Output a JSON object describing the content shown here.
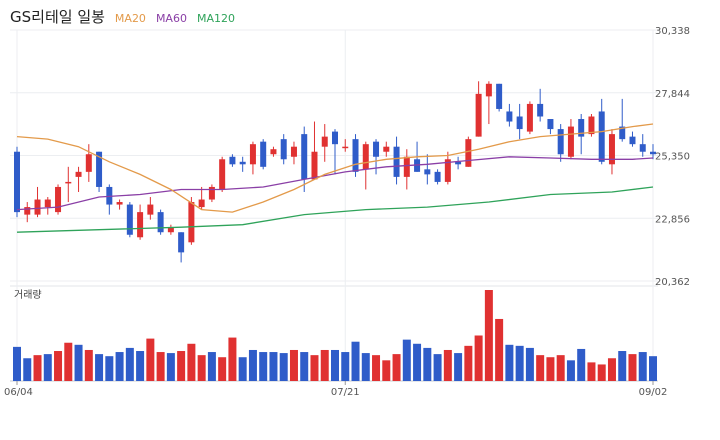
{
  "header": {
    "title": "GS리테일 일봉",
    "legend": [
      {
        "name": "MA20",
        "color": "#e39a4a"
      },
      {
        "name": "MA60",
        "color": "#8a3fa6"
      },
      {
        "name": "MA120",
        "color": "#2fa35a"
      }
    ]
  },
  "colors": {
    "up": "#e03131",
    "down": "#2f5cc9"
  },
  "chart_data": {
    "type": "candlestick",
    "title": "GS리테일 일봉",
    "y_ticks": [
      "30,338",
      "27,844",
      "25,350",
      "22,856",
      "20,362"
    ],
    "ylim": [
      20362,
      30338
    ],
    "x_tick_labels": [
      {
        "label": "06/04",
        "index": 0
      },
      {
        "label": "07/21",
        "index": 32
      },
      {
        "label": "09/02",
        "index": 62
      }
    ],
    "volume_label": "거래량",
    "candles": [
      [
        25500,
        23100,
        25700,
        22900
      ],
      [
        23000,
        23300,
        23500,
        22700
      ],
      [
        23000,
        23600,
        24100,
        22900
      ],
      [
        23300,
        23600,
        23700,
        23000
      ],
      [
        23100,
        24100,
        24200,
        23000
      ],
      [
        24300,
        24300,
        24900,
        23500
      ],
      [
        24500,
        24700,
        24900,
        23900
      ],
      [
        24700,
        25400,
        25800,
        24300
      ],
      [
        25500,
        24100,
        25500,
        23900
      ],
      [
        24100,
        23400,
        24200,
        23000
      ],
      [
        23400,
        23500,
        23600,
        23200
      ],
      [
        23400,
        22200,
        23500,
        22100
      ],
      [
        22100,
        23100,
        23400,
        22000
      ],
      [
        23000,
        23400,
        23700,
        22800
      ],
      [
        23100,
        22300,
        23200,
        22200
      ],
      [
        22300,
        22500,
        22600,
        22200
      ],
      [
        22300,
        21500,
        22300,
        21100
      ],
      [
        21900,
        23500,
        23700,
        21800
      ],
      [
        23300,
        23600,
        24100,
        23200
      ],
      [
        23600,
        24100,
        24200,
        23500
      ],
      [
        24000,
        25200,
        25300,
        23900
      ],
      [
        25300,
        25000,
        25400,
        24900
      ],
      [
        25100,
        25000,
        25300,
        24700
      ],
      [
        25000,
        25800,
        25900,
        24600
      ],
      [
        25900,
        24900,
        26000,
        24800
      ],
      [
        25400,
        25600,
        25700,
        25300
      ],
      [
        26000,
        25200,
        26200,
        25000
      ],
      [
        25300,
        25700,
        25900,
        25000
      ],
      [
        26200,
        24400,
        26500,
        23900
      ],
      [
        24400,
        25500,
        26700,
        24400
      ],
      [
        25700,
        26100,
        26600,
        25100
      ],
      [
        26300,
        25800,
        26400,
        24600
      ],
      [
        25700,
        25700,
        26000,
        25500
      ],
      [
        26000,
        24700,
        26200,
        24500
      ],
      [
        24800,
        25800,
        25900,
        24000
      ],
      [
        25900,
        25300,
        26000,
        24600
      ],
      [
        25500,
        25700,
        25900,
        25300
      ],
      [
        25700,
        24500,
        26100,
        24200
      ],
      [
        24500,
        25300,
        25600,
        24000
      ],
      [
        25200,
        24700,
        25900,
        24700
      ],
      [
        24800,
        24600,
        25400,
        24200
      ],
      [
        24700,
        24300,
        24800,
        24200
      ],
      [
        24300,
        25200,
        25500,
        24200
      ],
      [
        25100,
        25000,
        25300,
        24800
      ],
      [
        24900,
        26000,
        26100,
        24900
      ],
      [
        26100,
        27800,
        28300,
        26100
      ],
      [
        27700,
        28200,
        28300,
        26600
      ],
      [
        28200,
        27200,
        28200,
        27100
      ],
      [
        27100,
        26700,
        27400,
        26500
      ],
      [
        26900,
        26400,
        27400,
        26000
      ],
      [
        26300,
        27400,
        27500,
        26200
      ],
      [
        27400,
        26900,
        28000,
        26700
      ],
      [
        26800,
        26400,
        26700,
        26200
      ],
      [
        26400,
        25400,
        26600,
        25100
      ],
      [
        25300,
        26500,
        26800,
        25200
      ],
      [
        26800,
        26100,
        27000,
        25400
      ],
      [
        26200,
        26900,
        27000,
        26100
      ],
      [
        27100,
        25100,
        27600,
        25000
      ],
      [
        25000,
        26200,
        26400,
        24600
      ],
      [
        26500,
        26000,
        27600,
        25900
      ],
      [
        26100,
        25800,
        26300,
        25700
      ],
      [
        25800,
        25500,
        26200,
        25300
      ],
      [
        25500,
        25400,
        25800,
        25200
      ]
    ],
    "ma20": [
      [
        0,
        26100
      ],
      [
        3,
        26000
      ],
      [
        6,
        25700
      ],
      [
        9,
        25100
      ],
      [
        12,
        24600
      ],
      [
        15,
        24000
      ],
      [
        18,
        23200
      ],
      [
        21,
        23100
      ],
      [
        24,
        23500
      ],
      [
        27,
        24000
      ],
      [
        30,
        24600
      ],
      [
        33,
        25000
      ],
      [
        36,
        25200
      ],
      [
        39,
        25300
      ],
      [
        42,
        25350
      ],
      [
        45,
        25600
      ],
      [
        48,
        25900
      ],
      [
        51,
        26100
      ],
      [
        54,
        26200
      ],
      [
        57,
        26300
      ],
      [
        60,
        26500
      ],
      [
        62,
        26600
      ]
    ],
    "ma60": [
      [
        0,
        23200
      ],
      [
        4,
        23300
      ],
      [
        8,
        23700
      ],
      [
        12,
        23800
      ],
      [
        16,
        24000
      ],
      [
        20,
        24000
      ],
      [
        24,
        24100
      ],
      [
        28,
        24400
      ],
      [
        32,
        24700
      ],
      [
        36,
        24900
      ],
      [
        40,
        25000
      ],
      [
        44,
        25150
      ],
      [
        48,
        25300
      ],
      [
        52,
        25250
      ],
      [
        56,
        25200
      ],
      [
        60,
        25200
      ],
      [
        62,
        25250
      ]
    ],
    "ma120": [
      [
        0,
        22300
      ],
      [
        8,
        22400
      ],
      [
        16,
        22500
      ],
      [
        22,
        22600
      ],
      [
        28,
        23000
      ],
      [
        34,
        23200
      ],
      [
        40,
        23300
      ],
      [
        46,
        23500
      ],
      [
        52,
        23800
      ],
      [
        58,
        23900
      ],
      [
        62,
        24100
      ]
    ],
    "volume": [
      [
        330,
        "down"
      ],
      [
        220,
        "down"
      ],
      [
        250,
        "up"
      ],
      [
        260,
        "down"
      ],
      [
        290,
        "up"
      ],
      [
        370,
        "up"
      ],
      [
        350,
        "down"
      ],
      [
        300,
        "up"
      ],
      [
        260,
        "down"
      ],
      [
        240,
        "down"
      ],
      [
        280,
        "down"
      ],
      [
        320,
        "down"
      ],
      [
        290,
        "down"
      ],
      [
        410,
        "up"
      ],
      [
        280,
        "up"
      ],
      [
        270,
        "down"
      ],
      [
        290,
        "up"
      ],
      [
        360,
        "up"
      ],
      [
        250,
        "up"
      ],
      [
        280,
        "down"
      ],
      [
        230,
        "up"
      ],
      [
        420,
        "up"
      ],
      [
        230,
        "down"
      ],
      [
        300,
        "down"
      ],
      [
        280,
        "down"
      ],
      [
        280,
        "down"
      ],
      [
        270,
        "down"
      ],
      [
        300,
        "up"
      ],
      [
        280,
        "down"
      ],
      [
        250,
        "up"
      ],
      [
        300,
        "up"
      ],
      [
        300,
        "down"
      ],
      [
        280,
        "down"
      ],
      [
        380,
        "down"
      ],
      [
        270,
        "down"
      ],
      [
        250,
        "up"
      ],
      [
        200,
        "up"
      ],
      [
        260,
        "up"
      ],
      [
        400,
        "down"
      ],
      [
        360,
        "down"
      ],
      [
        320,
        "down"
      ],
      [
        260,
        "down"
      ],
      [
        300,
        "up"
      ],
      [
        270,
        "down"
      ],
      [
        340,
        "up"
      ],
      [
        440,
        "up"
      ],
      [
        880,
        "up"
      ],
      [
        600,
        "up"
      ],
      [
        350,
        "down"
      ],
      [
        340,
        "down"
      ],
      [
        320,
        "down"
      ],
      [
        250,
        "up"
      ],
      [
        230,
        "up"
      ],
      [
        250,
        "up"
      ],
      [
        200,
        "down"
      ],
      [
        310,
        "down"
      ],
      [
        180,
        "up"
      ],
      [
        160,
        "up"
      ],
      [
        220,
        "up"
      ],
      [
        290,
        "down"
      ],
      [
        260,
        "up"
      ],
      [
        280,
        "down"
      ],
      [
        240,
        "down"
      ]
    ]
  }
}
